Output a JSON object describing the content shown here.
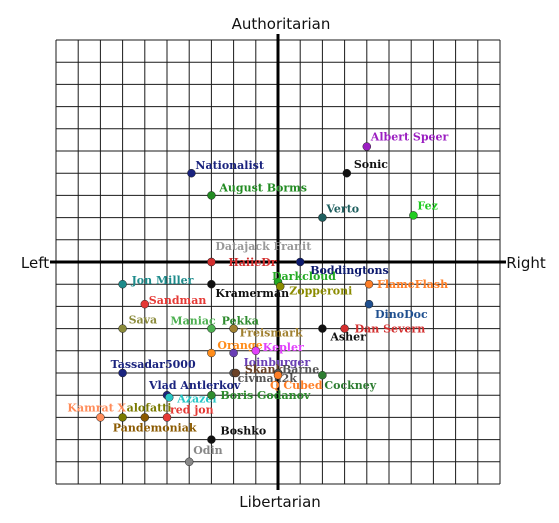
{
  "chart_data": {
    "type": "scatter",
    "title": "",
    "labels": {
      "top": "Authoritarian",
      "bottom": "Libertarian",
      "left": "Left",
      "right": "Right"
    },
    "xlim": [
      -10,
      10
    ],
    "ylim": [
      -10,
      10
    ],
    "grid": true,
    "legend": "none",
    "points": [
      {
        "name": "Albert Speer",
        "x": 4.0,
        "y": 5.2,
        "color": "#9b1fc1"
      },
      {
        "name": "Sonic",
        "x": 3.1,
        "y": 4.0,
        "color": "#111111"
      },
      {
        "name": "Nationalist",
        "x": -3.9,
        "y": 4.0,
        "color": "#1a237e"
      },
      {
        "name": "August Borms",
        "x": -3.0,
        "y": 3.0,
        "color": "#228b22"
      },
      {
        "name": "Verto",
        "x": 2.0,
        "y": 2.0,
        "color": "#1f5f5f"
      },
      {
        "name": "Fez",
        "x": 6.1,
        "y": 2.1,
        "color": "#22cc22"
      },
      {
        "name": "Datajack Franit",
        "x": -3.0,
        "y": 0.0,
        "color": "#999999"
      },
      {
        "name": "HaiieDr",
        "x": -3.0,
        "y": 0.0,
        "color": "#d32f2f"
      },
      {
        "name": "Boddingtons",
        "x": 1.0,
        "y": 0.0,
        "color": "#0d1a6e"
      },
      {
        "name": "Darkcloud",
        "x": 0.0,
        "y": -0.9,
        "color": "#22aa22"
      },
      {
        "name": "Jon Miller",
        "x": -7.0,
        "y": -1.0,
        "color": "#1e8b8b"
      },
      {
        "name": "Kramerman",
        "x": -3.0,
        "y": -1.0,
        "color": "#111111"
      },
      {
        "name": "Zopperoni",
        "x": 0.1,
        "y": -1.1,
        "color": "#8b8b00"
      },
      {
        "name": "FlameFlash",
        "x": 4.1,
        "y": -1.0,
        "color": "#ff7f27"
      },
      {
        "name": "Sandman",
        "x": -6.0,
        "y": -1.9,
        "color": "#e53935"
      },
      {
        "name": "DinoDoc",
        "x": 4.1,
        "y": -1.9,
        "color": "#1f4f8f"
      },
      {
        "name": "Sava",
        "x": -7.0,
        "y": -3.0,
        "color": "#8b8b3b"
      },
      {
        "name": "Maniac",
        "x": -3.0,
        "y": -3.0,
        "color": "#4caf50"
      },
      {
        "name": "Pekka",
        "x": -2.0,
        "y": -3.0,
        "color": "#2e8b2e"
      },
      {
        "name": "Freismark",
        "x": -2.0,
        "y": -3.0,
        "color": "#a08030"
      },
      {
        "name": "Asher",
        "x": 2.0,
        "y": -3.0,
        "color": "#111111"
      },
      {
        "name": "Dan Severn",
        "x": 3.0,
        "y": -3.0,
        "color": "#d32f2f"
      },
      {
        "name": "Orange",
        "x": -3.0,
        "y": -4.1,
        "color": "#ff8c1a"
      },
      {
        "name": "Kepler",
        "x": -1.0,
        "y": -4.0,
        "color": "#e040fb"
      },
      {
        "name": "Ioinburger",
        "x": -2.0,
        "y": -4.1,
        "color": "#6a3fb5"
      },
      {
        "name": "Tassadar5000",
        "x": -7.0,
        "y": -5.0,
        "color": "#1a237e"
      },
      {
        "name": "civman2k",
        "x": -2.0,
        "y": -5.0,
        "color": "#555555"
      },
      {
        "name": "Skank",
        "x": -1.9,
        "y": -5.0,
        "color": "#6b4226"
      },
      {
        "name": "Barne",
        "x": 0.0,
        "y": -5.0,
        "color": "#555555"
      },
      {
        "name": "Q Cubed",
        "x": 0.0,
        "y": -5.1,
        "color": "#ff7f27"
      },
      {
        "name": "Cockney",
        "x": 2.0,
        "y": -5.1,
        "color": "#2e7d32"
      },
      {
        "name": "Vlad Antlerkov",
        "x": -5.0,
        "y": -6.0,
        "color": "#1a237e"
      },
      {
        "name": "Azazel",
        "x": -4.9,
        "y": -6.1,
        "color": "#26c6c6"
      },
      {
        "name": "Boris Godanov",
        "x": -3.0,
        "y": -6.0,
        "color": "#2e8b2e"
      },
      {
        "name": "Kamrat X",
        "x": -8.0,
        "y": -7.0,
        "color": "#ff8c5a"
      },
      {
        "name": "alofatti",
        "x": -7.0,
        "y": -7.0,
        "color": "#7a7a00"
      },
      {
        "name": "Pandemoniak",
        "x": -6.0,
        "y": -7.0,
        "color": "#8b5a00"
      },
      {
        "name": "red jon",
        "x": -5.0,
        "y": -7.0,
        "color": "#e53935"
      },
      {
        "name": "Boshko",
        "x": -3.0,
        "y": -8.0,
        "color": "#111111"
      },
      {
        "name": "Odin",
        "x": -4.0,
        "y": -9.0,
        "color": "#888888"
      }
    ]
  }
}
